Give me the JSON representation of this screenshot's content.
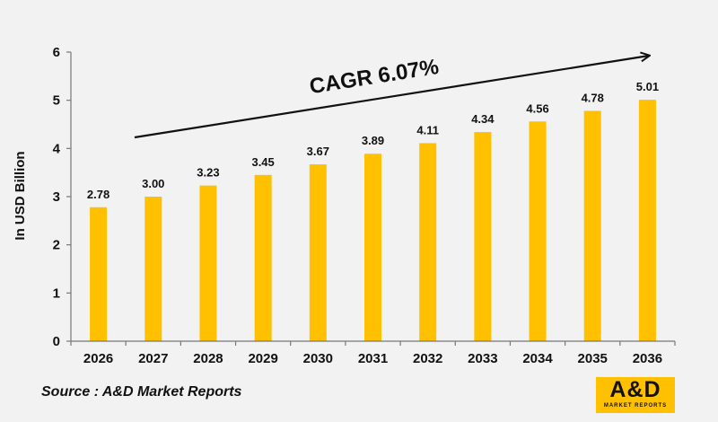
{
  "chart_data": {
    "type": "bar",
    "categories": [
      "2026",
      "2027",
      "2028",
      "2029",
      "2030",
      "2031",
      "2032",
      "2033",
      "2034",
      "2035",
      "2036"
    ],
    "values": [
      2.78,
      3.0,
      3.23,
      3.45,
      3.67,
      3.89,
      4.11,
      4.34,
      4.56,
      4.78,
      5.01
    ],
    "value_labels": [
      "2.78",
      "3.00",
      "3.23",
      "3.45",
      "3.67",
      "3.89",
      "4.11",
      "4.34",
      "4.56",
      "4.78",
      "5.01"
    ],
    "ylabel": "In USD Billion",
    "ylim": [
      0,
      6
    ],
    "yticks": [
      "0",
      "1",
      "2",
      "3",
      "4",
      "5",
      "6"
    ],
    "grid": false,
    "bar_color": "#ffc000",
    "annotation": "CAGR 6.07%"
  },
  "source": "Source : A&D Market Reports",
  "logo": {
    "main": "A&D",
    "sub": "MARKET REPORTS"
  }
}
